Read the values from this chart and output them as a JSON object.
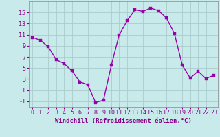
{
  "x": [
    0,
    1,
    2,
    3,
    4,
    5,
    6,
    7,
    8,
    9,
    10,
    11,
    12,
    13,
    14,
    15,
    16,
    17,
    18,
    19,
    20,
    21,
    22,
    23
  ],
  "y": [
    10.5,
    10.0,
    8.8,
    6.5,
    5.8,
    4.5,
    2.5,
    2.0,
    -1.2,
    -0.8,
    5.5,
    11.0,
    13.5,
    15.5,
    15.2,
    15.8,
    15.3,
    14.0,
    11.2,
    5.5,
    3.2,
    4.4,
    3.1,
    3.7
  ],
  "line_color": "#9900aa",
  "marker_color": "#9900aa",
  "bg_color": "#c8eaea",
  "grid_color": "#aacccc",
  "xlabel": "Windchill (Refroidissement éolien,°C)",
  "xlim": [
    -0.5,
    23.5
  ],
  "ylim": [
    -2,
    17
  ],
  "yticks": [
    -1,
    1,
    3,
    5,
    7,
    9,
    11,
    13,
    15
  ],
  "xticks": [
    0,
    1,
    2,
    3,
    4,
    5,
    6,
    7,
    8,
    9,
    10,
    11,
    12,
    13,
    14,
    15,
    16,
    17,
    18,
    19,
    20,
    21,
    22,
    23
  ],
  "xlabel_fontsize": 6.5,
  "tick_fontsize": 6,
  "line_width": 1.0,
  "marker_size": 2.5
}
